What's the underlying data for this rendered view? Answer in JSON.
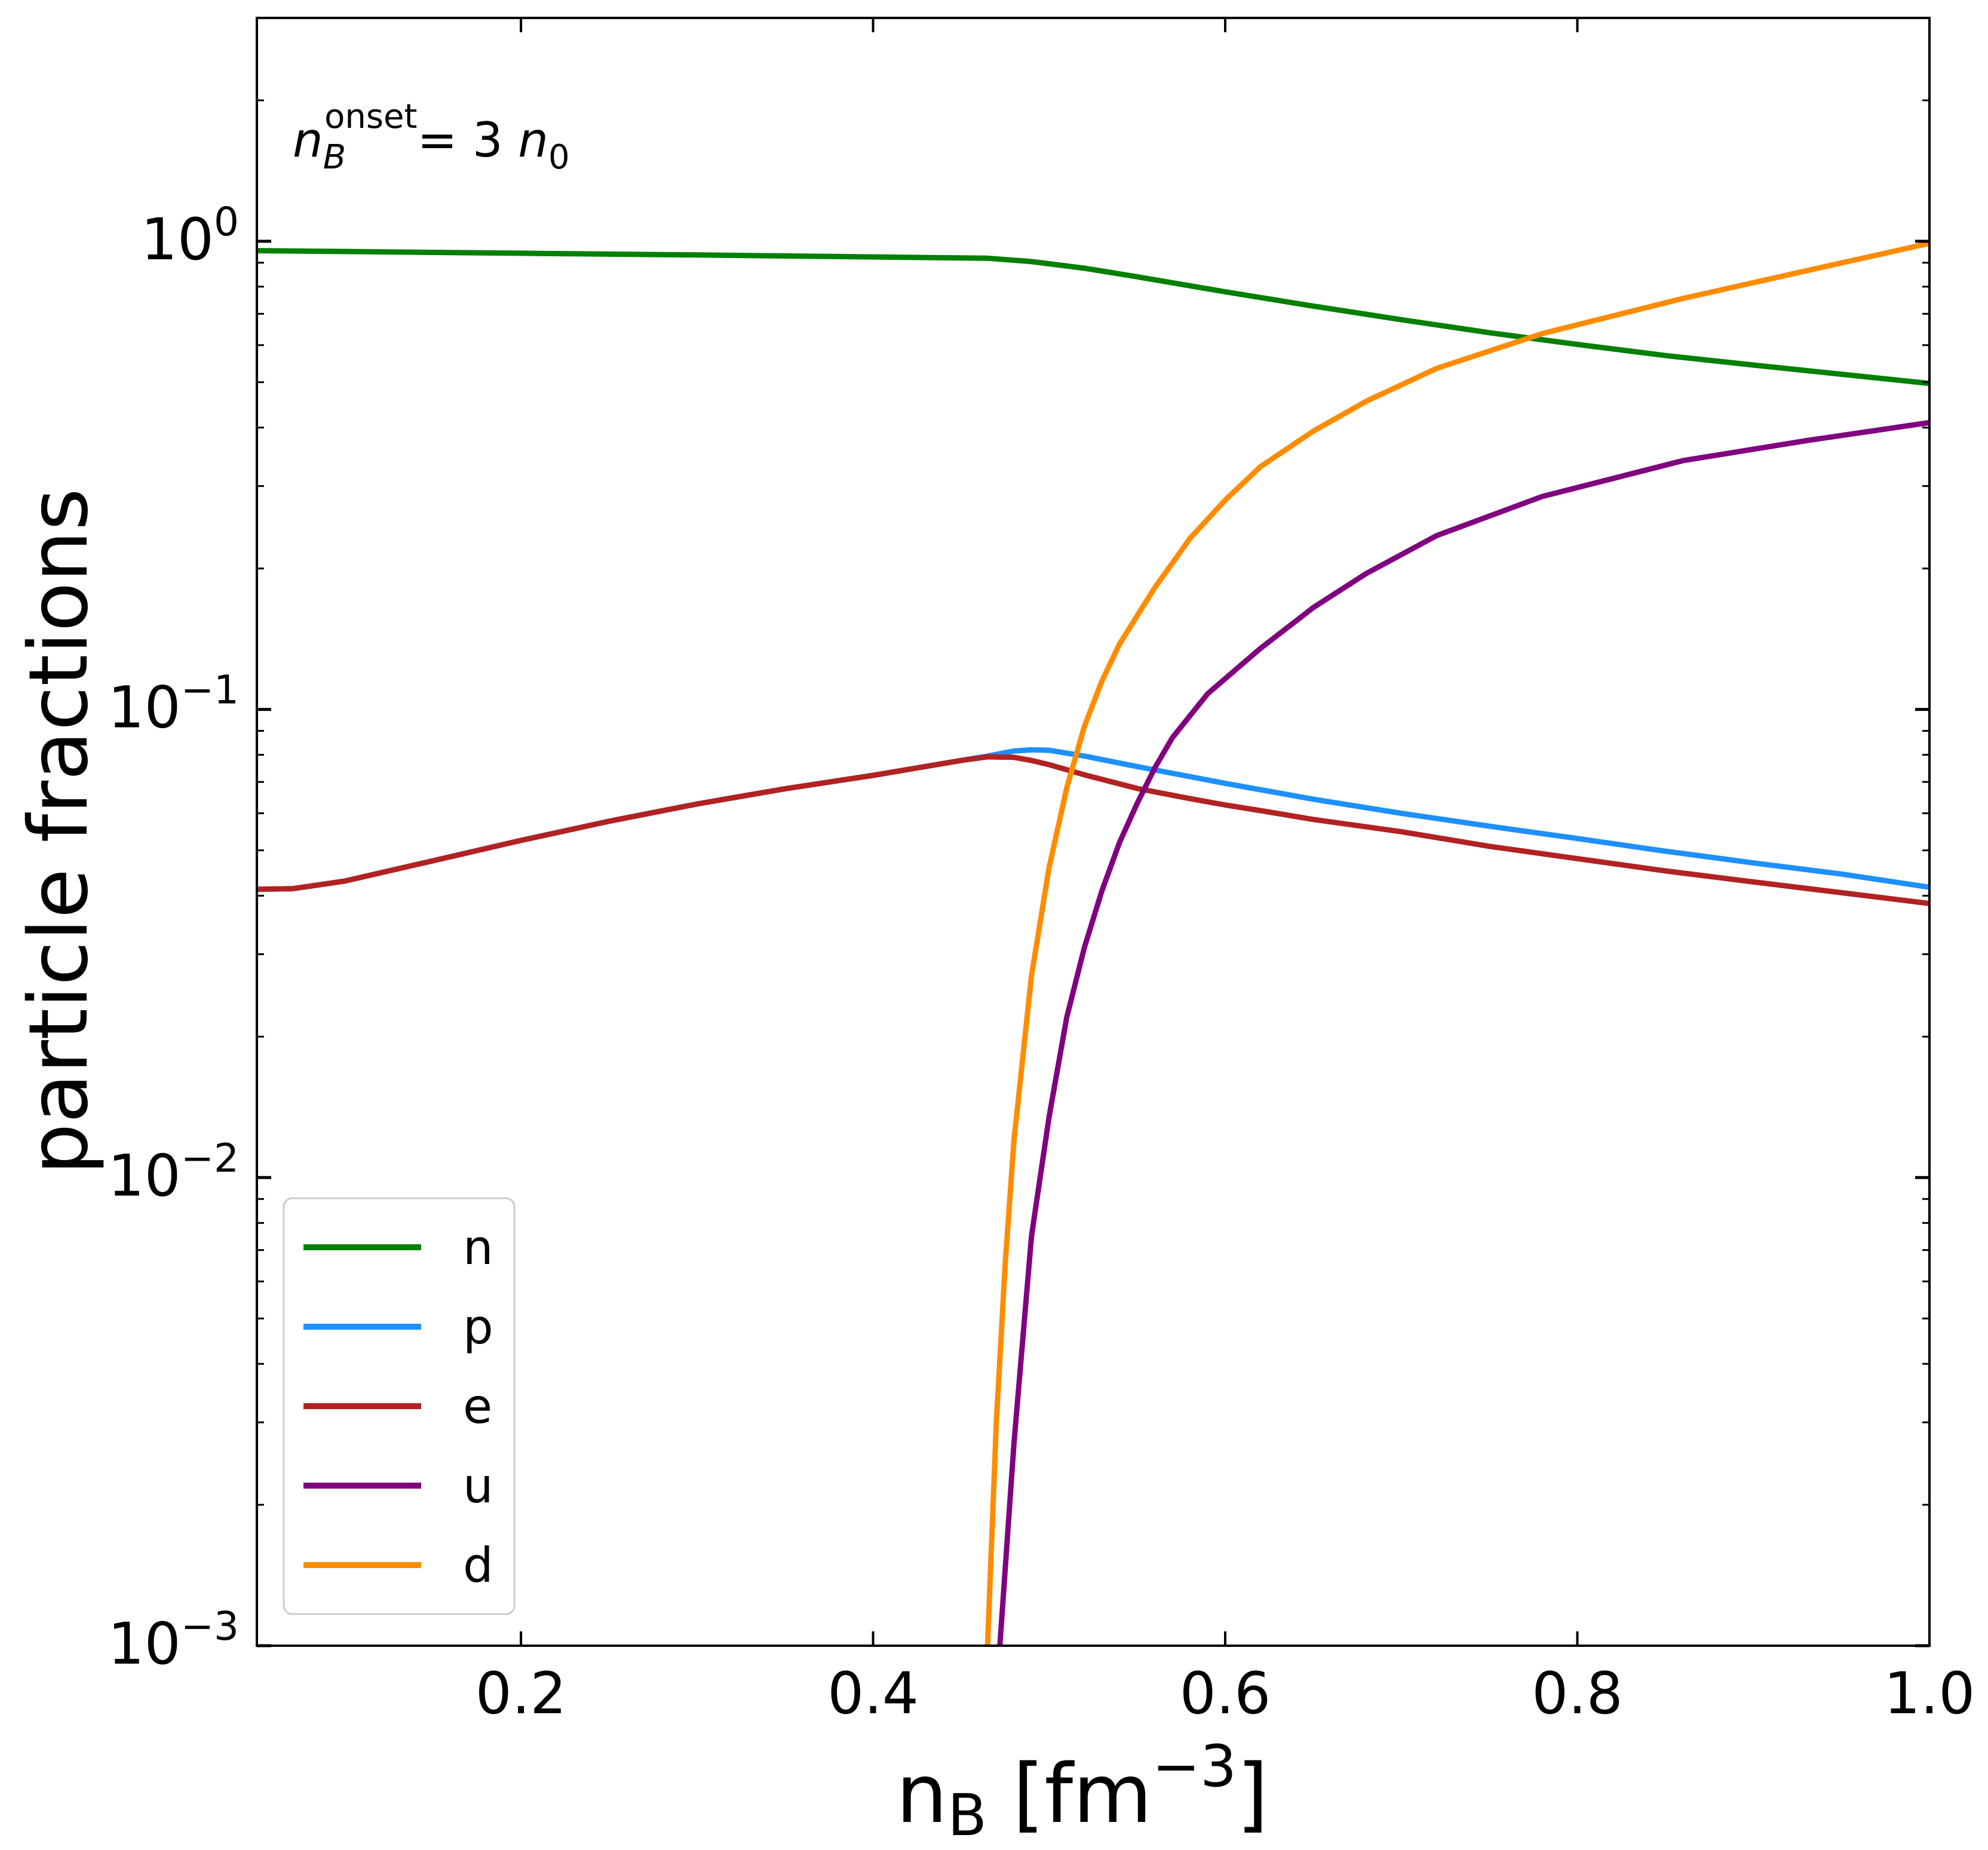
{
  "chart_data": {
    "type": "line",
    "title": "",
    "xlabel_base": "n",
    "xlabel_sub": "B",
    "xlabel_unit_open": " [fm",
    "xlabel_unit_exp": "−3",
    "xlabel_unit_close": "]",
    "ylabel": "particle fractions",
    "xlim": [
      0.05,
      1.0
    ],
    "ylim": [
      0.001,
      3.0
    ],
    "yscale": "log",
    "grid": false,
    "legend_position": "lower-left",
    "x_ticks": [
      {
        "value": 0.2,
        "label": "0.2"
      },
      {
        "value": 0.4,
        "label": "0.4"
      },
      {
        "value": 0.6,
        "label": "0.6"
      },
      {
        "value": 0.8,
        "label": "0.8"
      },
      {
        "value": 1.0,
        "label": "1.0"
      }
    ],
    "y_ticks": [
      {
        "value": 1.0,
        "base": "10",
        "exp": "0"
      },
      {
        "value": 0.1,
        "base": "10",
        "exp": "−1"
      },
      {
        "value": 0.01,
        "base": "10",
        "exp": "−2"
      },
      {
        "value": 0.001,
        "base": "10",
        "exp": "−3"
      }
    ],
    "annotation": {
      "base": "n",
      "sub": "B",
      "sup": "onset",
      "rest": "=  3 ",
      "n0_base": "n",
      "n0_sub": "0"
    },
    "series": [
      {
        "name": "n",
        "color": "#008000",
        "x": [
          0.05,
          0.1,
          0.2,
          0.3,
          0.4,
          0.465,
          0.49,
          0.52,
          0.55,
          0.6,
          0.65,
          0.7,
          0.75,
          0.8,
          0.85,
          0.9,
          0.95,
          1.0
        ],
        "y": [
          0.955,
          0.951,
          0.943,
          0.935,
          0.926,
          0.92,
          0.905,
          0.876,
          0.84,
          0.78,
          0.727,
          0.68,
          0.638,
          0.602,
          0.57,
          0.544,
          0.52,
          0.497
        ]
      },
      {
        "name": "p",
        "color": "#1e90ff",
        "x": [
          0.05,
          0.07,
          0.1,
          0.15,
          0.2,
          0.25,
          0.3,
          0.35,
          0.4,
          0.45,
          0.465,
          0.48,
          0.49,
          0.5,
          0.52,
          0.55,
          0.6,
          0.65,
          0.7,
          0.75,
          0.8,
          0.85,
          0.9,
          0.95,
          1.0
        ],
        "y": [
          0.0413,
          0.0414,
          0.043,
          0.0475,
          0.0525,
          0.0577,
          0.0628,
          0.0677,
          0.0723,
          0.0778,
          0.0795,
          0.0815,
          0.082,
          0.0818,
          0.0795,
          0.0755,
          0.0695,
          0.0643,
          0.06,
          0.0563,
          0.053,
          0.0498,
          0.047,
          0.0445,
          0.0417
        ]
      },
      {
        "name": "e",
        "color": "#b22222",
        "x": [
          0.05,
          0.07,
          0.1,
          0.15,
          0.2,
          0.25,
          0.3,
          0.35,
          0.4,
          0.45,
          0.465,
          0.48,
          0.49,
          0.5,
          0.52,
          0.55,
          0.58,
          0.6,
          0.62,
          0.65,
          0.7,
          0.75,
          0.8,
          0.85,
          0.9,
          0.95,
          1.0
        ],
        "y": [
          0.0413,
          0.0414,
          0.043,
          0.0475,
          0.0525,
          0.0577,
          0.0628,
          0.0677,
          0.0723,
          0.0778,
          0.0792,
          0.079,
          0.0778,
          0.0762,
          0.0725,
          0.0678,
          0.0645,
          0.0625,
          0.0608,
          0.0582,
          0.0548,
          0.051,
          0.048,
          0.0452,
          0.0428,
          0.0406,
          0.0385
        ]
      },
      {
        "name": "u",
        "color": "#800080",
        "x": [
          0.472,
          0.48,
          0.49,
          0.5,
          0.51,
          0.52,
          0.53,
          0.54,
          0.55,
          0.56,
          0.57,
          0.59,
          0.62,
          0.65,
          0.68,
          0.72,
          0.78,
          0.86,
          0.93,
          1.0
        ],
        "y": [
          0.001,
          0.0027,
          0.0075,
          0.0135,
          0.022,
          0.031,
          0.041,
          0.052,
          0.063,
          0.075,
          0.087,
          0.108,
          0.135,
          0.165,
          0.195,
          0.235,
          0.285,
          0.34,
          0.375,
          0.41
        ]
      },
      {
        "name": "d",
        "color": "#ff8c00",
        "x": [
          0.465,
          0.47,
          0.475,
          0.48,
          0.49,
          0.5,
          0.51,
          0.52,
          0.53,
          0.54,
          0.56,
          0.58,
          0.6,
          0.62,
          0.65,
          0.68,
          0.72,
          0.78,
          0.86,
          0.93,
          1.0
        ],
        "y": [
          0.001,
          0.003,
          0.0065,
          0.012,
          0.027,
          0.046,
          0.068,
          0.092,
          0.115,
          0.138,
          0.182,
          0.232,
          0.28,
          0.33,
          0.393,
          0.455,
          0.535,
          0.635,
          0.755,
          0.865,
          0.99
        ]
      }
    ]
  }
}
